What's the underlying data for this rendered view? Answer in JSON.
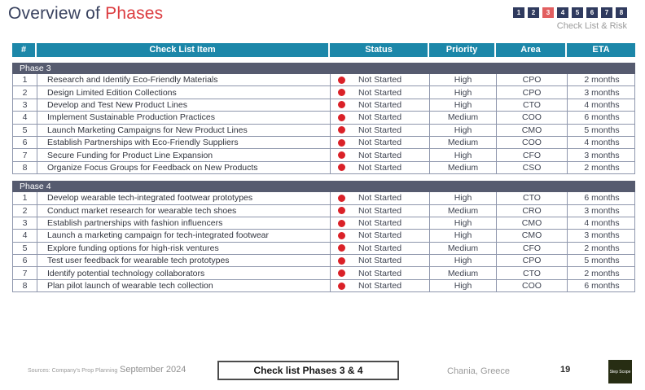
{
  "title": {
    "prefix": "Overview of ",
    "highlight": "Phases"
  },
  "nav": {
    "boxes": [
      "1",
      "2",
      "3",
      "4",
      "5",
      "6",
      "7",
      "8"
    ],
    "active_index": 2,
    "subtitle": "Check List & Risk"
  },
  "table": {
    "columns": [
      "#",
      "Check List Item",
      "Status",
      "Priority",
      "Area",
      "ETA"
    ],
    "phases": [
      {
        "label": "Phase 3",
        "rows": [
          {
            "num": "1",
            "item": "Research and Identify Eco-Friendly Materials",
            "status": "Not Started",
            "priority": "High",
            "area": "CPO",
            "eta": "2 months"
          },
          {
            "num": "2",
            "item": "Design Limited Edition Collections",
            "status": "Not Started",
            "priority": "High",
            "area": "CPO",
            "eta": "3 months"
          },
          {
            "num": "3",
            "item": "Develop and Test New Product Lines",
            "status": "Not Started",
            "priority": "High",
            "area": "CTO",
            "eta": "4 months"
          },
          {
            "num": "4",
            "item": "Implement Sustainable Production Practices",
            "status": "Not Started",
            "priority": "Medium",
            "area": "COO",
            "eta": "6 months"
          },
          {
            "num": "5",
            "item": "Launch Marketing Campaigns for New Product Lines",
            "status": "Not Started",
            "priority": "High",
            "area": "CMO",
            "eta": "5 months"
          },
          {
            "num": "6",
            "item": "Establish Partnerships with Eco-Friendly Suppliers",
            "status": "Not Started",
            "priority": "Medium",
            "area": "COO",
            "eta": "4 months"
          },
          {
            "num": "7",
            "item": "Secure Funding for Product Line Expansion",
            "status": "Not Started",
            "priority": "High",
            "area": "CFO",
            "eta": "3 months"
          },
          {
            "num": "8",
            "item": "Organize Focus Groups for Feedback on New Products",
            "status": "Not Started",
            "priority": "Medium",
            "area": "CSO",
            "eta": "2 months"
          }
        ]
      },
      {
        "label": "Phase 4",
        "rows": [
          {
            "num": "1",
            "item": "Develop wearable tech-integrated footwear prototypes",
            "status": "Not Started",
            "priority": "High",
            "area": "CTO",
            "eta": "6 months"
          },
          {
            "num": "2",
            "item": "Conduct market research for wearable tech shoes",
            "status": "Not Started",
            "priority": "Medium",
            "area": "CRO",
            "eta": "3 months"
          },
          {
            "num": "3",
            "item": "Establish partnerships with fashion influencers",
            "status": "Not Started",
            "priority": "High",
            "area": "CMO",
            "eta": "4 months"
          },
          {
            "num": "4",
            "item": "Launch a marketing campaign for tech-integrated footwear",
            "status": "Not Started",
            "priority": "High",
            "area": "CMO",
            "eta": "3 months"
          },
          {
            "num": "5",
            "item": "Explore funding options for high-risk ventures",
            "status": "Not Started",
            "priority": "Medium",
            "area": "CFO",
            "eta": "2 months"
          },
          {
            "num": "6",
            "item": "Test user feedback for wearable tech prototypes",
            "status": "Not Started",
            "priority": "High",
            "area": "CPO",
            "eta": "5 months"
          },
          {
            "num": "7",
            "item": "Identify potential technology collaborators",
            "status": "Not Started",
            "priority": "Medium",
            "area": "CTO",
            "eta": "2 months"
          },
          {
            "num": "8",
            "item": "Plan pilot launch of wearable tech collection",
            "status": "Not Started",
            "priority": "High",
            "area": "COO",
            "eta": "6 months"
          }
        ]
      }
    ]
  },
  "footer": {
    "sources": "Sources: Company's Prop Planning",
    "date": "September 2024",
    "section_label": "Check list Phases 3 & 4",
    "location": "Chania, Greece",
    "page_number": "19",
    "logo_text": "Step Scope"
  },
  "colors": {
    "header_teal": "#1c87a9",
    "phase_bar": "#565b6f",
    "row_border": "#8e96ac",
    "status_dot_red": "#da2128",
    "nav_navy": "#2f3a5e",
    "nav_active_red": "#e25f60",
    "title_navy": "#39425f",
    "title_red": "#dc3c40"
  }
}
